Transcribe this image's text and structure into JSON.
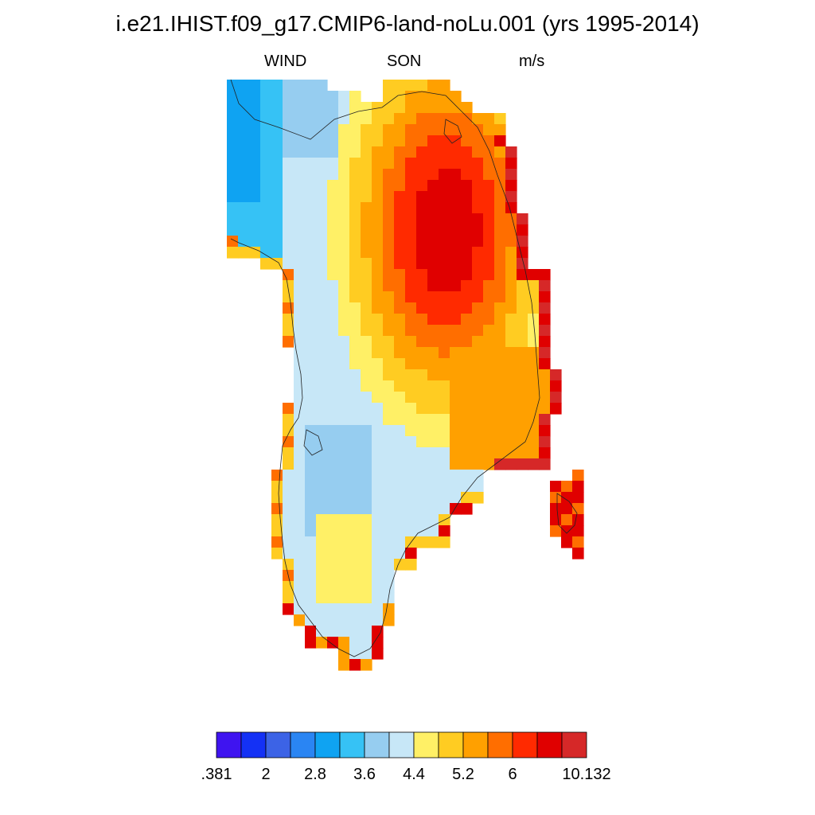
{
  "title": "i.e21.IHIST.f09_g17.CMIP6-land-noLu.001 (yrs 1995-2014)",
  "subtitle": {
    "left": "WIND",
    "center": "SON",
    "right": "m/s"
  },
  "colorbar": {
    "colors": [
      "#3f14f0",
      "#1431f5",
      "#3c63e6",
      "#2a85f3",
      "#0fa3f2",
      "#36c2f5",
      "#96cdf0",
      "#c7e7f7",
      "#fff066",
      "#ffcc22",
      "#ffa000",
      "#ff6e00",
      "#ff2a00",
      "#e00000",
      "#d62828"
    ],
    "labels": [
      ".381",
      "2",
      "2.8",
      "3.6",
      "4.4",
      "5.2",
      "6",
      "10.132"
    ]
  },
  "map": {
    "region": "Greenland",
    "variable": "WIND",
    "season": "SON",
    "units": "m/s",
    "pattern": "Highest wind speeds (>6 m/s) over the central-eastern ice sheet; lower speeds (2.8-4.4 m/s) along the western and northwestern margins; high values along the southeast coast and southern tip."
  }
}
